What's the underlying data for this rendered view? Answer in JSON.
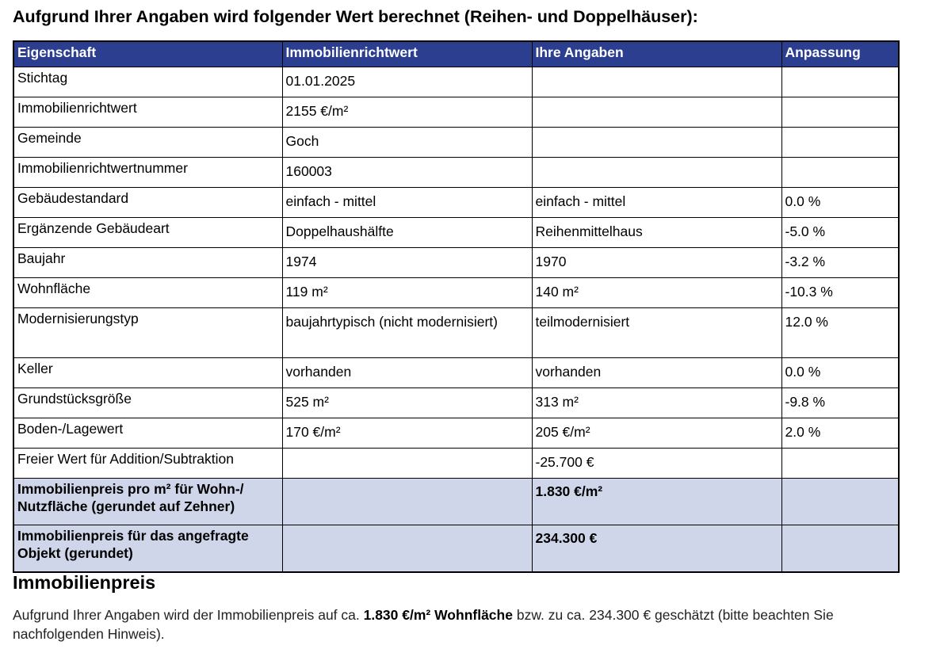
{
  "title": "Aufgrund Ihrer Angaben wird folgender Wert berechnet (Reihen- und Doppelhäuser):",
  "table": {
    "headers": [
      "Eigenschaft",
      "Immobilienrichtwert",
      "Ihre Angaben",
      "Anpassung"
    ],
    "rows": [
      {
        "property": "Stichtag",
        "reference": "01.01.2025",
        "input": "",
        "adjustment": ""
      },
      {
        "property": "Immobilienrichtwert",
        "reference": "2155 €/m²",
        "input": "",
        "adjustment": ""
      },
      {
        "property": "Gemeinde",
        "reference": "Goch",
        "input": "",
        "adjustment": ""
      },
      {
        "property": "Immobilienrichtwertnummer",
        "reference": "160003",
        "input": "",
        "adjustment": ""
      },
      {
        "property": "Gebäudestandard",
        "reference": "einfach - mittel",
        "input": "einfach - mittel",
        "adjustment": "0.0 %"
      },
      {
        "property": "Ergänzende Gebäudeart",
        "reference": "Doppelhaushälfte",
        "input": "Reihenmittelhaus",
        "adjustment": "-5.0 %"
      },
      {
        "property": "Baujahr",
        "reference": "1974",
        "input": "1970",
        "adjustment": "-3.2 %"
      },
      {
        "property": "Wohnfläche",
        "reference": "119 m²",
        "input": "140 m²",
        "adjustment": "-10.3 %"
      },
      {
        "property": "Modernisierungstyp",
        "reference": "baujahrtypisch (nicht modernisiert)",
        "input": "teilmodernisiert",
        "adjustment": "12.0 %"
      },
      {
        "property": "Keller",
        "reference": "vorhanden",
        "input": "vorhanden",
        "adjustment": "0.0 %"
      },
      {
        "property": "Grundstücksgröße",
        "reference": "525 m²",
        "input": "313 m²",
        "adjustment": "-9.8 %"
      },
      {
        "property": "Boden-/Lagewert",
        "reference": "170 €/m²",
        "input": "205 €/m²",
        "adjustment": "2.0 %"
      },
      {
        "property": "Freier Wert für Addition/Subtraktion",
        "reference": "",
        "input": "-25.700 €",
        "adjustment": ""
      }
    ],
    "results": [
      {
        "property": "Immobilienpreis pro m² für Wohn-/ Nutzfläche (gerundet auf Zehner)",
        "reference": "",
        "input": "1.830 €/m²",
        "adjustment": ""
      },
      {
        "property": "Immobilienpreis für das angefragte Objekt (gerundet)",
        "reference": "",
        "input": "234.300 €",
        "adjustment": ""
      }
    ]
  },
  "section": {
    "heading": "Immobilienpreis",
    "text_before": "Aufgrund Ihrer Angaben wird der Immobilienpreis auf ca. ",
    "text_bold": "1.830 €/m² Wohnfläche",
    "text_after": " bzw. zu ca. 234.300 € geschätzt (bitte beachten Sie nachfolgenden Hinweis)."
  }
}
